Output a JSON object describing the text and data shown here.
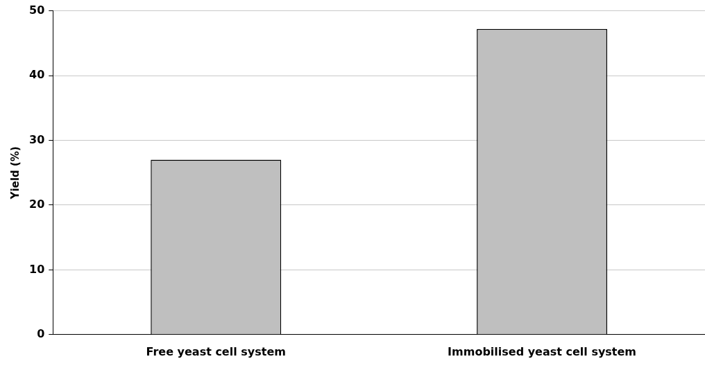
{
  "chart_data": {
    "type": "bar",
    "ylabel": "Yield (%)",
    "categories": [
      "Free yeast cell system",
      "Immobilised yeast cell system"
    ],
    "values": [
      27,
      47.2
    ],
    "color": "#bfbfbf",
    "ylim": [
      0,
      50
    ],
    "yticks": [
      0,
      10,
      20,
      30,
      40,
      50
    ],
    "grid": "y",
    "legend": false
  }
}
